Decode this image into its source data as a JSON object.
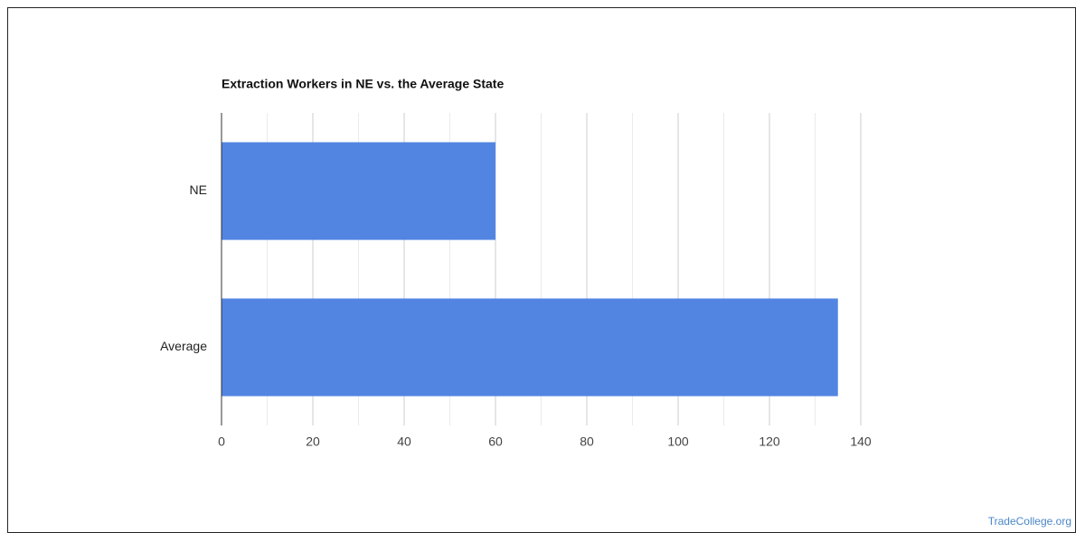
{
  "chart_data": {
    "type": "hbar",
    "title": "Extraction Workers in NE vs. the Average State",
    "categories": [
      "NE",
      "Average"
    ],
    "values": [
      60,
      135
    ],
    "color": "#5285e2",
    "xlim": [
      0,
      140
    ],
    "xticks": [
      0,
      20,
      40,
      60,
      80,
      100,
      120,
      140
    ],
    "xminorticks": [
      10,
      30,
      50,
      70,
      90,
      110,
      130
    ],
    "grid": true,
    "source": "TradeCollege.org"
  }
}
